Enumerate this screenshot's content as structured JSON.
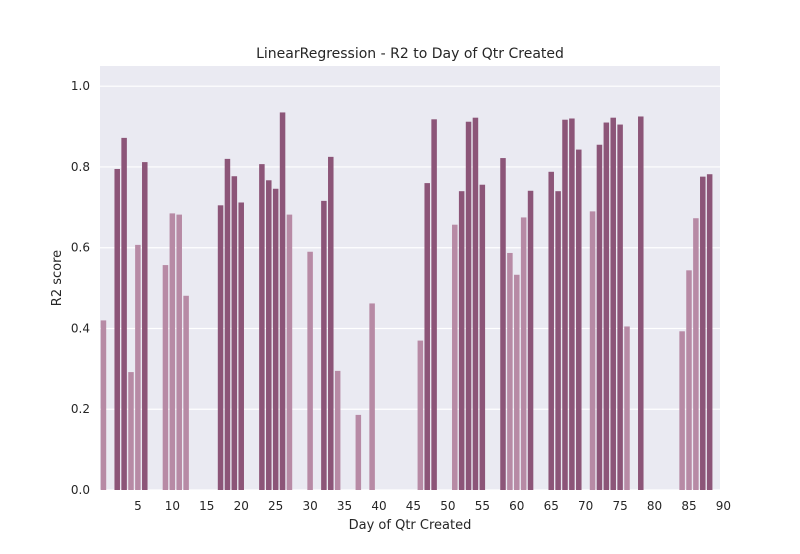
{
  "colors": {
    "plot_background": "#eaeaf2",
    "grid": "#ffffff",
    "bar_light": "#b78aa5",
    "bar_dark": "#8c5578"
  },
  "chart_data": {
    "type": "bar",
    "title": "LinearRegression - R2 to Day of Qtr Created",
    "xlabel": "Day of Qtr Created",
    "ylabel": "R2 score",
    "xlim": [
      0,
      90
    ],
    "ylim": [
      0,
      1.05
    ],
    "xticks": [
      5,
      10,
      15,
      20,
      25,
      30,
      35,
      40,
      45,
      50,
      55,
      60,
      65,
      70,
      75,
      80,
      85,
      90
    ],
    "yticks": [
      0.0,
      0.2,
      0.4,
      0.6,
      0.8,
      1.0
    ],
    "ytick_labels": [
      "0.0",
      "0.2",
      "0.4",
      "0.6",
      "0.8",
      "1.0"
    ],
    "grid": true,
    "x": [
      0,
      2,
      3,
      4,
      5,
      6,
      9,
      10,
      11,
      12,
      17,
      18,
      19,
      20,
      23,
      24,
      25,
      26,
      27,
      30,
      32,
      33,
      34,
      37,
      39,
      46,
      47,
      48,
      51,
      52,
      53,
      54,
      55,
      58,
      59,
      60,
      61,
      62,
      65,
      66,
      67,
      68,
      69,
      71,
      72,
      73,
      74,
      75,
      76,
      78,
      84,
      85,
      86,
      87,
      88
    ],
    "values": [
      0.42,
      0.795,
      0.872,
      0.292,
      0.607,
      0.812,
      0.557,
      0.685,
      0.682,
      0.481,
      0.705,
      0.82,
      0.777,
      0.712,
      0.807,
      0.767,
      0.746,
      0.935,
      0.682,
      0.59,
      0.716,
      0.825,
      0.295,
      0.186,
      0.462,
      0.37,
      0.76,
      0.918,
      0.657,
      0.74,
      0.912,
      0.922,
      0.756,
      0.822,
      0.587,
      0.533,
      0.675,
      0.741,
      0.788,
      0.74,
      0.917,
      0.92,
      0.843,
      0.69,
      0.855,
      0.91,
      0.922,
      0.905,
      0.405,
      0.925,
      0.393,
      0.544,
      0.673,
      0.776,
      0.782
    ]
  }
}
